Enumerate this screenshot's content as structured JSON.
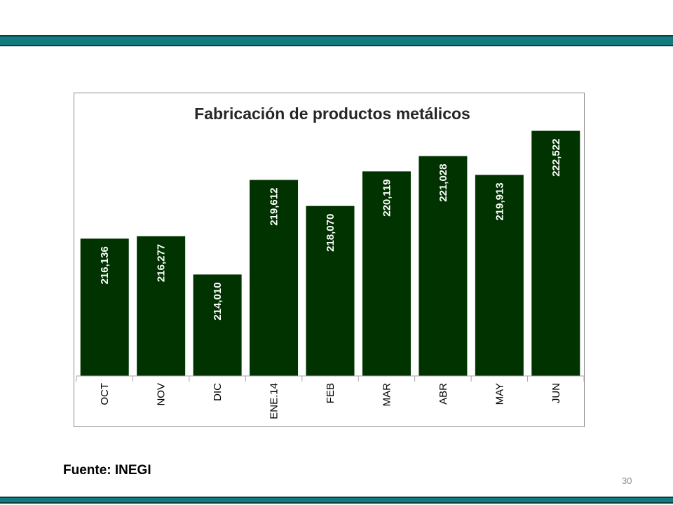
{
  "chart_data": {
    "type": "bar",
    "title": "Fabricación de productos metálicos",
    "categories": [
      "OCT",
      "NOV",
      "DIC",
      "ENE.14",
      "FEB",
      "MAR",
      "ABR",
      "MAY",
      "JUN"
    ],
    "values": [
      216136,
      216277,
      214010,
      219612,
      218070,
      220119,
      221028,
      219913,
      222522
    ],
    "value_labels": [
      "216,136",
      "216,277",
      "214,010",
      "219,612",
      "218,070",
      "220,119",
      "221,028",
      "219,913",
      "222,522"
    ],
    "ylim": [
      208000,
      223500
    ],
    "bar_color": "#003300",
    "grid": false,
    "xlabel": "",
    "ylabel": ""
  },
  "footer": {
    "source": "Fuente: INEGI",
    "page_number": "30"
  },
  "colors": {
    "accent_band": "#137a7f"
  }
}
